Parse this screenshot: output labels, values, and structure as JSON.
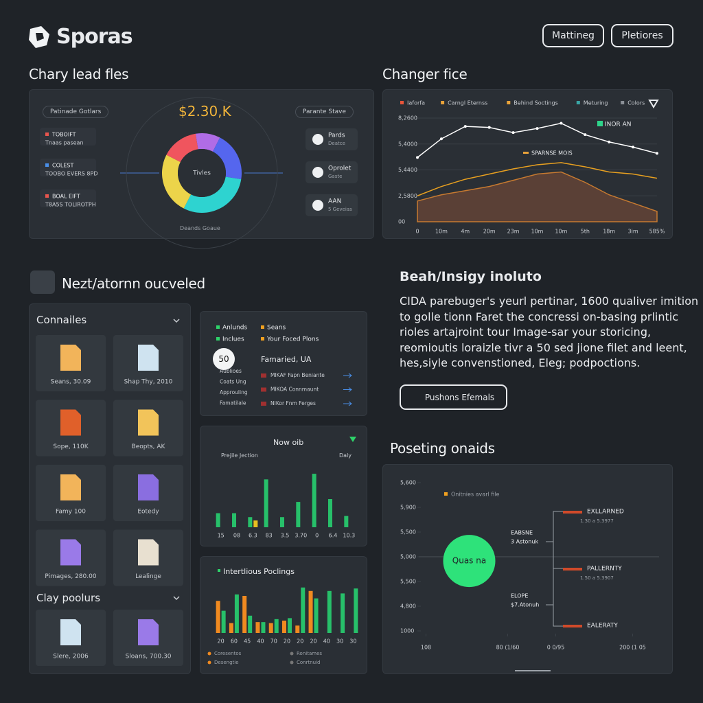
{
  "header": {
    "brand": "Sporas",
    "buttons": [
      "Mattineg",
      "Pletiores"
    ]
  },
  "lead_files": {
    "title": "Chary lead fles",
    "left_heading": "Patinade Gotlars",
    "left_items": [
      {
        "name": "TOBOIFT",
        "detail": "Tnaas pasean",
        "color": "#e8554e"
      },
      {
        "name": "COLEST",
        "detail": "TOOBO EVERS 8PD",
        "color": "#4a8fe8"
      },
      {
        "name": "BOAL EIFT",
        "detail": "T8A5S TOLIROTPH",
        "color": "#e8554e"
      }
    ],
    "amount": "$2.30,K",
    "donut": {
      "type": "pie",
      "center_label": "Tivles",
      "values": [
        15,
        10,
        20,
        30,
        25
      ],
      "colors": [
        "#f0555e",
        "#b06ce6",
        "#5566ee",
        "#2ed3d0",
        "#ecd44a"
      ]
    },
    "right_heading": "Parante Stave",
    "right_items": [
      {
        "name": "Pards",
        "detail": "Deatce"
      },
      {
        "name": "Oprolet",
        "detail": "Gaste"
      },
      {
        "name": "AAN",
        "detail": "5 Geveias"
      }
    ],
    "footer": "Deands Goaue"
  },
  "trend": {
    "title": "Changer fice",
    "chart": {
      "type": "line",
      "legend": [
        {
          "name": "Iaforfa",
          "color": "#e8553a"
        },
        {
          "name": "Carngl Eternss",
          "color": "#e8a23a"
        },
        {
          "name": "Behind Soctings",
          "color": "#e8a23a"
        },
        {
          "name": "Meturing",
          "color": "#3aa6a6"
        },
        {
          "name": "Colors",
          "color": "#8a8f96"
        }
      ],
      "annotations": [
        {
          "text": "INOR AN",
          "color": "#2ed38a"
        },
        {
          "text": "SPARNSE MOIS",
          "color": "#e8a23a"
        }
      ],
      "categories": [
        "0",
        "10m",
        "4m",
        "20m",
        "23m",
        "10m",
        "10m",
        "5th",
        "18m",
        "3im",
        "585%"
      ],
      "series": [
        {
          "color": "#ffffff",
          "values": [
            62,
            80,
            92,
            91,
            86,
            90,
            95,
            84,
            77,
            72,
            66
          ]
        },
        {
          "color": "#e8a020",
          "values": [
            25,
            34,
            41,
            46,
            51,
            55,
            57,
            53,
            48,
            46,
            42
          ]
        },
        {
          "color": "#c77a30",
          "fill": "#5a4036",
          "values": [
            20,
            26,
            30,
            34,
            40,
            46,
            48,
            38,
            26,
            18,
            10
          ]
        }
      ],
      "ylim": [
        0,
        100
      ],
      "yticks": [
        {
          "value": 0,
          "label": "00"
        },
        {
          "value": 25,
          "label": "2,5800"
        },
        {
          "value": 50,
          "label": "5,4400"
        },
        {
          "value": 75,
          "label": "5,4000"
        },
        {
          "value": 100,
          "label": "8,2600"
        }
      ]
    }
  },
  "section": {
    "title": "Nezt/atornn oucveled"
  },
  "files": {
    "title": "Connailes",
    "items": [
      {
        "label": "Seans, 30.09",
        "color": "#f2b45a"
      },
      {
        "label": "Shap Thy, 2010",
        "color": "#cfe3f0"
      },
      {
        "label": "Sope, 110K",
        "color": "#e0602a"
      },
      {
        "label": "Beopts, AK",
        "color": "#f2c45a"
      },
      {
        "label": "Famy 100",
        "color": "#f2b45a"
      },
      {
        "label": "Eotedy",
        "color": "#8a6ee0"
      },
      {
        "label": "Pimages, 280.00",
        "color": "#9a7ae8"
      },
      {
        "label": "Lealinge",
        "color": "#e8e0d0"
      }
    ],
    "group_title": "Clay poolurs",
    "group_items": [
      {
        "label": "Slere, 2006",
        "color": "#cfe3f0"
      },
      {
        "label": "Sloans, 700.30",
        "color": "#9a7ae8"
      }
    ]
  },
  "focus": {
    "legend": [
      {
        "name": "Anlunds",
        "color": "#2ed36a"
      },
      {
        "name": "Seans",
        "color": "#f0a020"
      },
      {
        "name": "Inclues",
        "color": "#2ed36a"
      },
      {
        "name": "Your Foced Plons",
        "color": "#f0a020"
      }
    ],
    "badge": "50",
    "heading": "Famaried, UA",
    "labels": [
      "Aublioes",
      "Coats Ung",
      "Approuling",
      "Famatilale"
    ],
    "rows": [
      "MIKAF Fapn Beniante",
      "MIKOA Connmaunt",
      "NIKor Fnm Ferges"
    ]
  },
  "activity": {
    "title": "Now oib",
    "left_label": "Prejile Jection",
    "right_label": "Daly",
    "chart": {
      "type": "bar",
      "categories": [
        "15",
        "08",
        "6.3",
        "83",
        "3.5",
        "3.70",
        "0",
        "6.4",
        "10.3"
      ],
      "series": [
        {
          "color": "#27c06a",
          "values": [
            25,
            25,
            18,
            85,
            18,
            45,
            95,
            50,
            20
          ]
        },
        {
          "color": "#e8c020",
          "values": [
            null,
            null,
            12,
            null,
            null,
            null,
            null,
            null,
            null
          ]
        }
      ],
      "ylim": [
        0,
        100
      ]
    }
  },
  "pockets": {
    "title": "Intertlious Poclings",
    "chart": {
      "type": "bar",
      "categories": [
        "20",
        "60",
        "45",
        "40",
        "70",
        "20",
        "20",
        "20",
        "40",
        "30",
        "30"
      ],
      "series": [
        {
          "color": "#f08a20",
          "values": [
            65,
            20,
            75,
            22,
            20,
            25,
            15,
            85,
            null,
            null,
            null
          ]
        },
        {
          "color": "#27c06a",
          "values": [
            45,
            78,
            35,
            22,
            28,
            30,
            92,
            70,
            85,
            80,
            90
          ]
        }
      ],
      "ylim": [
        0,
        100
      ]
    },
    "legend": [
      "Coresentos",
      "Ronitames",
      "Desengtie",
      "Conrtnuid"
    ]
  },
  "insight": {
    "title": "Beah/Insigy inoluto",
    "lines": [
      "CIDA parebuger's yeurl pertinar, 1600 qualiver imition",
      "to golle tionn Faret the concressi on-basing prlintic",
      "rioles artajroint tour Image-sar your storicing,",
      "reomioutis loraizle tivr a 50 sed jione filet and leent,",
      "hes,siyle convenstioned, Eleg; podpoctions."
    ],
    "button": "Pushons Efemals"
  },
  "positions": {
    "title": "Poseting onaids",
    "chart": {
      "type": "scatter",
      "legend": "Onitnies avarl file",
      "ylim": [
        0,
        6
      ],
      "yticks": [
        {
          "value": 0,
          "label": "1000"
        },
        {
          "value": 1,
          "label": "4,800"
        },
        {
          "value": 2,
          "label": "5,500"
        },
        {
          "value": 3,
          "label": "5,000"
        },
        {
          "value": 4,
          "label": "5,500"
        },
        {
          "value": 5,
          "label": "5,900"
        },
        {
          "value": 6,
          "label": "5,600"
        }
      ],
      "xlim": [
        0,
        1
      ],
      "xticks": [
        {
          "value": 0.03,
          "label": "108"
        },
        {
          "value": 0.37,
          "label": "80 (1/60"
        },
        {
          "value": 0.57,
          "label": "0 0/95"
        },
        {
          "value": 0.89,
          "label": "200 (1 05"
        }
      ],
      "bubble": {
        "label": "Quas na",
        "x": 0.21,
        "y": 2.83,
        "color": "#2ee27a"
      },
      "notes": [
        {
          "title": "EABSNE",
          "detail": "3 Astonuk"
        },
        {
          "title": "ELOPE",
          "detail": "$7.Atonuh"
        }
      ],
      "items": [
        {
          "title": "EXLLARNED",
          "detail": "1.30 a 5.3977"
        },
        {
          "title": "PALLERNTY",
          "detail": "1.50 a 5.3907"
        },
        {
          "title": "EALERATY"
        }
      ]
    }
  }
}
